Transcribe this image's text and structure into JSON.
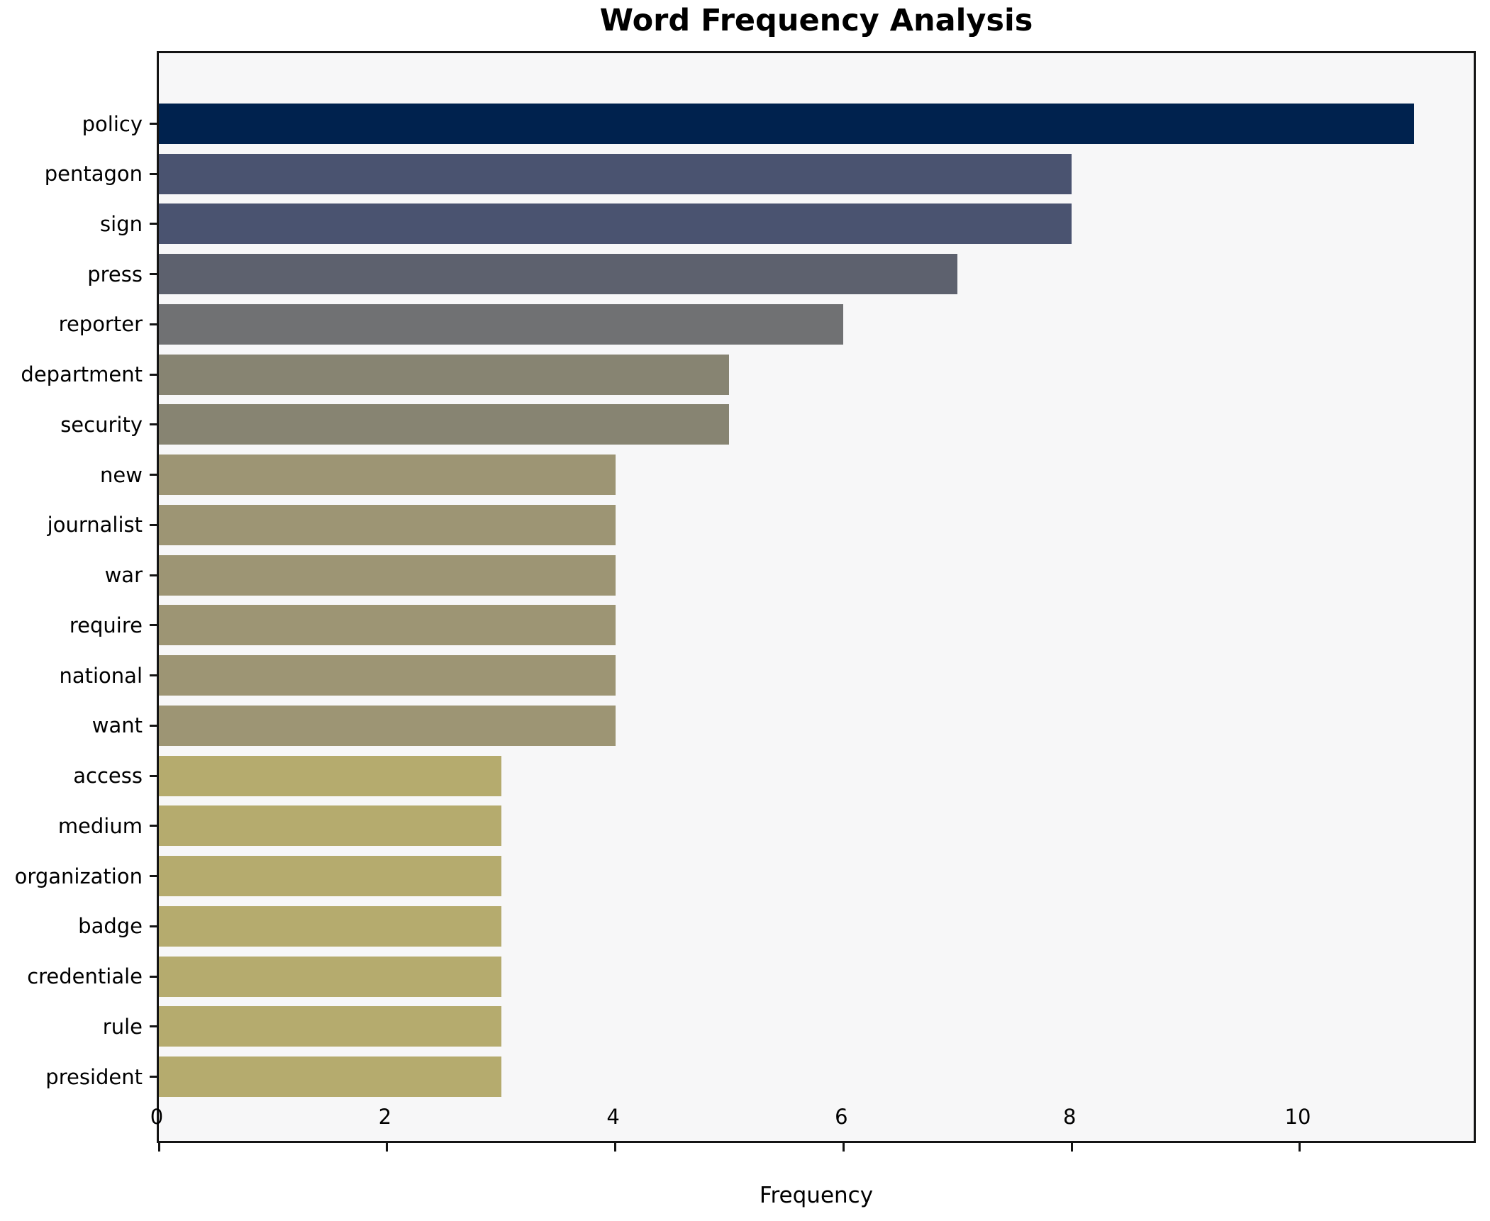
{
  "title": "Word Frequency Analysis",
  "chart_data": {
    "type": "bar",
    "orientation": "horizontal",
    "title": "Word Frequency Analysis",
    "xlabel": "Frequency",
    "ylabel": "",
    "categories": [
      "policy",
      "pentagon",
      "sign",
      "press",
      "reporter",
      "department",
      "security",
      "new",
      "journalist",
      "war",
      "require",
      "national",
      "want",
      "access",
      "medium",
      "organization",
      "badge",
      "credentiale",
      "rule",
      "president"
    ],
    "values": [
      11,
      8,
      8,
      7,
      6,
      5,
      5,
      4,
      4,
      4,
      4,
      4,
      4,
      3,
      3,
      3,
      3,
      3,
      3,
      3
    ],
    "bar_colors": [
      "#00224e",
      "#4a5370",
      "#4a5370",
      "#5d616e",
      "#707173",
      "#878472",
      "#878472",
      "#9d9574",
      "#9d9574",
      "#9d9574",
      "#9d9574",
      "#9d9574",
      "#9d9574",
      "#b5ab6e",
      "#b5ab6e",
      "#b5ab6e",
      "#b5ab6e",
      "#b5ab6e",
      "#b5ab6e",
      "#b5ab6e"
    ],
    "xlim": [
      0,
      11.56
    ],
    "xticks": [
      0,
      2,
      4,
      6,
      8,
      10
    ],
    "grid": false,
    "legend": null,
    "plot_background": "#f7f7f8",
    "figure_background": "#ffffff",
    "spine_color": "#141414"
  }
}
